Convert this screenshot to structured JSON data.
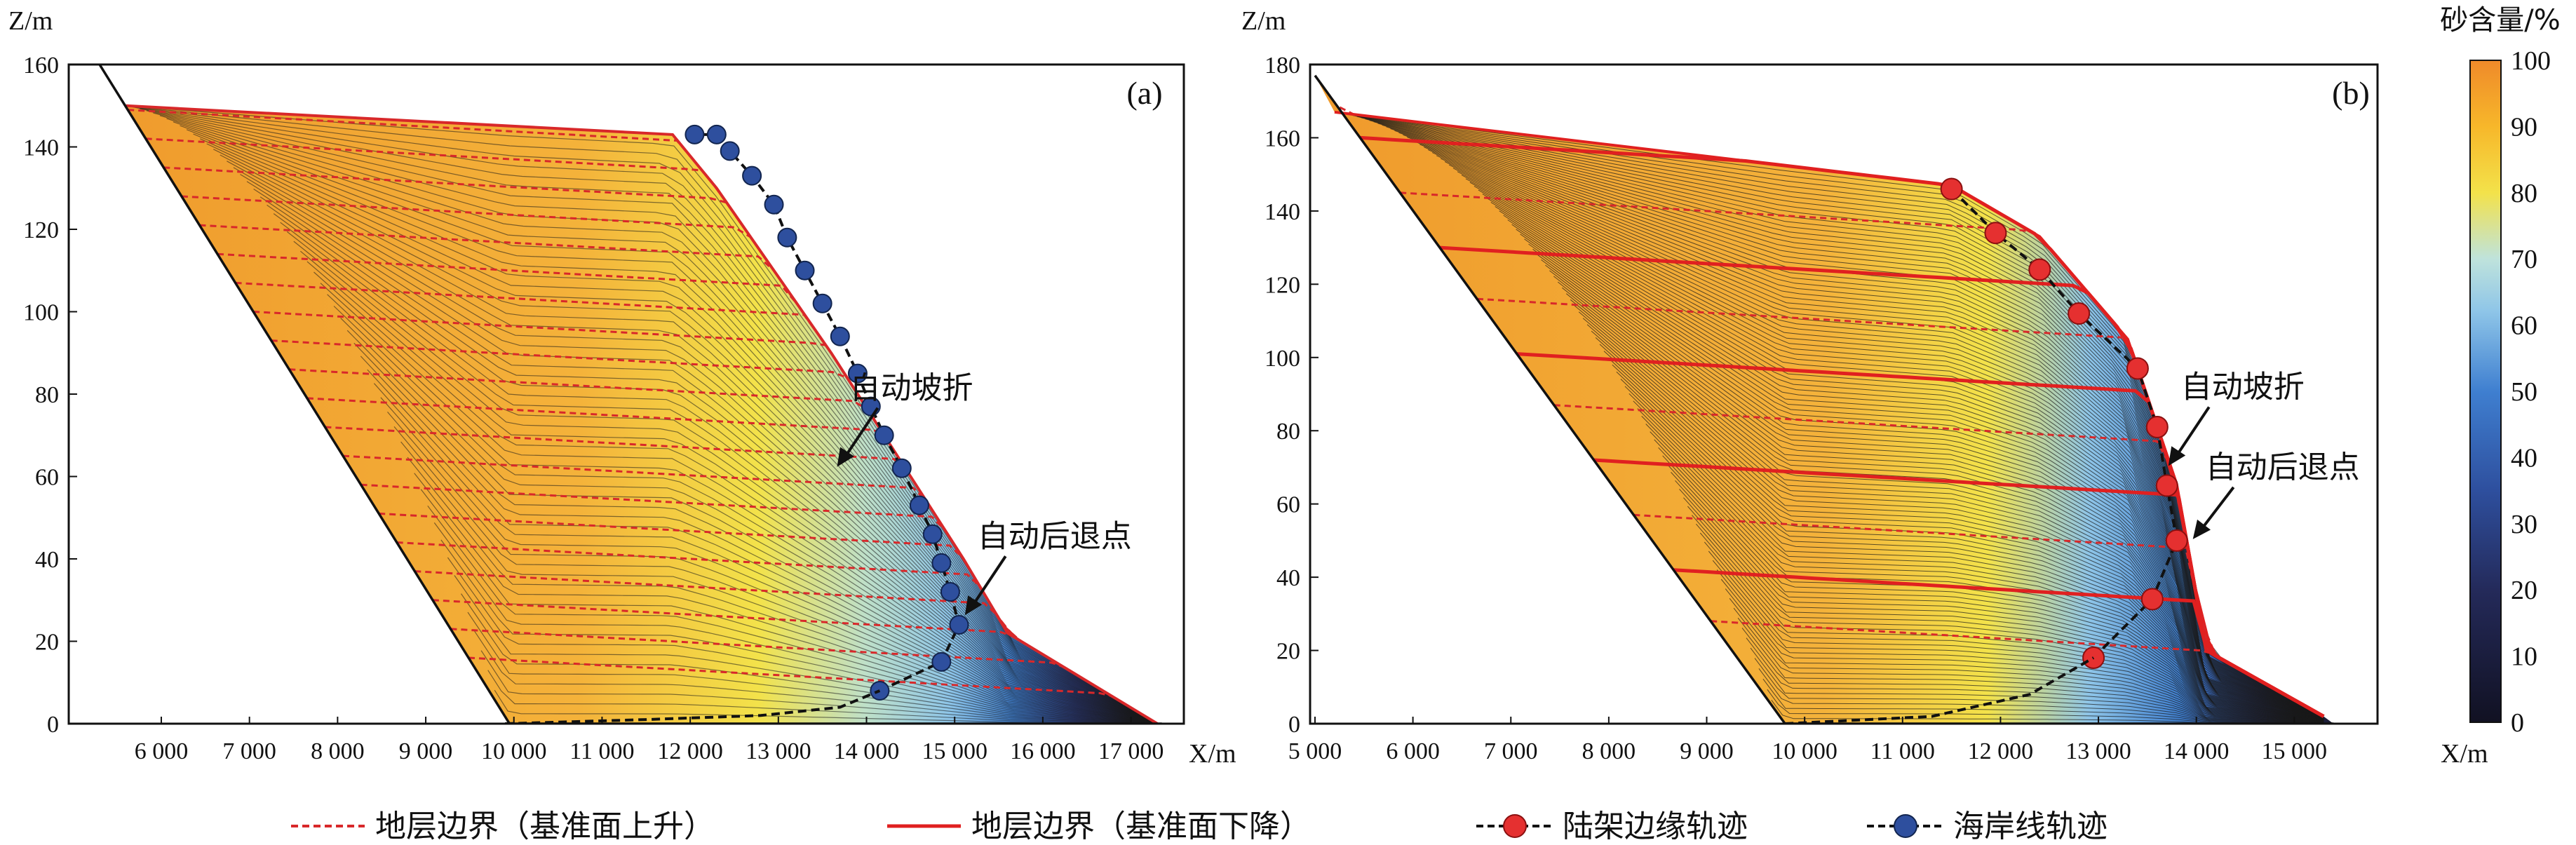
{
  "colors": {
    "dashed_boundary": "#d8282a",
    "solid_boundary": "#e02020",
    "shelf_edge_marker": "#e53030",
    "shoreline_marker": "#2e4f9e",
    "trajectory": "#111111",
    "colormap": [
      "#1a1a2e",
      "#2e3f8f",
      "#3f7fd0",
      "#8ec5e8",
      "#bfe3dc",
      "#f3e24a",
      "#f7b72a",
      "#ef8a2a"
    ]
  },
  "legend": {
    "items": [
      {
        "label": "地层边界（基准面上升）",
        "style": "dashed-red"
      },
      {
        "label": "地层边界（基准面下降）",
        "style": "solid-red"
      },
      {
        "label": "陆架边缘轨迹",
        "style": "red-marker"
      },
      {
        "label": "海岸线轨迹",
        "style": "blue-marker"
      }
    ]
  },
  "colorbar": {
    "title": "砂含量/%",
    "ticks": [
      "100",
      "90",
      "80",
      "70",
      "60",
      "50",
      "40",
      "30",
      "20",
      "10",
      "0"
    ],
    "range": [
      0,
      100
    ]
  },
  "chart_data": [
    {
      "type": "line",
      "panel_label": "(a)",
      "xlabel": "X/m",
      "ylabel": "Z/m",
      "xlim": [
        4950,
        17600
      ],
      "ylim": [
        0,
        160
      ],
      "xticks": [
        6000,
        7000,
        8000,
        9000,
        10000,
        11000,
        12000,
        13000,
        14000,
        15000,
        16000,
        17000
      ],
      "xtick_labels": [
        "6 000",
        "7 000",
        "8 000",
        "9 000",
        "10 000",
        "11 000",
        "12 000",
        "13 000",
        "14 000",
        "15 000",
        "16 000",
        "17 000"
      ],
      "yticks": [
        0,
        20,
        40,
        60,
        80,
        100,
        120,
        140,
        160
      ],
      "ytick_labels": [
        "0",
        "20",
        "40",
        "60",
        "80",
        "100",
        "120",
        "140",
        "160"
      ],
      "basement": {
        "x": [
          5300,
          9950,
          17350
        ],
        "y": [
          160,
          0,
          0
        ]
      },
      "top_surface": {
        "x": [
          5600,
          11800,
          12300,
          13600,
          15100,
          15600,
          17300
        ],
        "y": [
          150,
          143,
          130,
          90,
          40,
          22,
          0
        ]
      },
      "series": [
        {
          "name": "海岸线轨迹",
          "marker": "blue",
          "x": [
            14150,
            14850,
            15050,
            14950,
            14850,
            14750,
            14600,
            14400,
            14200,
            14050,
            13900,
            13700,
            13500,
            13300,
            13100,
            12950,
            12700,
            12450,
            12300,
            12050
          ],
          "y": [
            8,
            15,
            24,
            32,
            39,
            46,
            53,
            62,
            70,
            77,
            85,
            94,
            102,
            110,
            118,
            126,
            133,
            139,
            143,
            143
          ]
        },
        {
          "name": "海岸线轨迹-延伸",
          "marker": "none",
          "x": [
            9900,
            11500,
            12800,
            13700,
            14150
          ],
          "y": [
            0,
            1,
            2,
            4,
            8
          ]
        }
      ],
      "boundary_count": 20,
      "boundary_top_y": [
        149,
        142,
        135,
        128,
        121,
        114,
        107,
        100,
        93,
        86,
        79,
        72,
        65,
        58,
        51,
        44,
        37,
        30,
        23,
        16
      ],
      "annotations": [
        {
          "text": "自动坡折",
          "arrow_to": [
            13650,
            62
          ]
        },
        {
          "text": "自动后退点",
          "arrow_to": [
            15100,
            26
          ]
        }
      ]
    },
    {
      "type": "line",
      "panel_label": "(b)",
      "xlabel": "X/m",
      "ylabel": "Z/m",
      "xlim": [
        4950,
        15850
      ],
      "ylim": [
        0,
        180
      ],
      "xticks": [
        5000,
        6000,
        7000,
        8000,
        9000,
        10000,
        11000,
        12000,
        13000,
        14000,
        15000
      ],
      "xtick_labels": [
        "5 000",
        "6 000",
        "7 000",
        "8 000",
        "9 000",
        "10 000",
        "11 000",
        "12 000",
        "13 000",
        "14 000",
        "15 000"
      ],
      "yticks": [
        0,
        20,
        40,
        60,
        80,
        100,
        120,
        140,
        160,
        180
      ],
      "ytick_labels": [
        "0",
        "20",
        "40",
        "60",
        "80",
        "100",
        "120",
        "140",
        "160",
        "180"
      ],
      "basement": {
        "x": [
          5000,
          9800,
          15400
        ],
        "y": [
          177,
          0,
          0
        ]
      },
      "top_surface": {
        "x": [
          5200,
          11500,
          12400,
          13300,
          13800,
          14100,
          15300
        ],
        "y": [
          167,
          147,
          133,
          105,
          65,
          20,
          2
        ]
      },
      "series": [
        {
          "name": "陆架边缘轨迹",
          "marker": "red",
          "x": [
            12950,
            13550,
            13800,
            13700,
            13600,
            13400,
            12800,
            12400,
            11950,
            11500
          ],
          "y": [
            18,
            34,
            50,
            65,
            81,
            97,
            112,
            124,
            134,
            146
          ]
        },
        {
          "name": "陆架边缘轨迹-延伸",
          "marker": "none",
          "x": [
            9800,
            11300,
            12300,
            12950
          ],
          "y": [
            0,
            2,
            8,
            18
          ]
        }
      ],
      "sequence_tops_y": [
        175,
        160,
        145,
        130,
        116,
        101,
        87,
        72,
        57,
        42,
        28
      ],
      "annotations": [
        {
          "text": "自动坡折",
          "arrow_to": [
            13700,
            70
          ]
        },
        {
          "text": "自动后退点",
          "arrow_to": [
            13950,
            50
          ]
        }
      ]
    }
  ]
}
